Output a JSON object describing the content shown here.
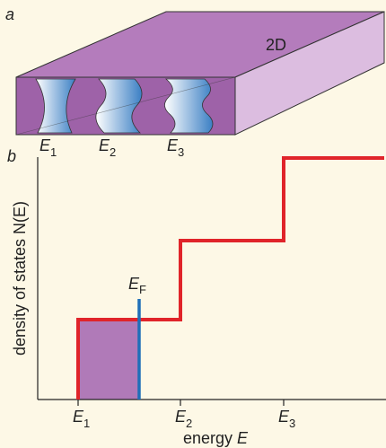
{
  "panel_a": {
    "letter": "a",
    "slab_label": "2D",
    "levels": [
      {
        "symbol": "E",
        "subscript": "1"
      },
      {
        "symbol": "E",
        "subscript": "2"
      },
      {
        "symbol": "E",
        "subscript": "3"
      }
    ]
  },
  "panel_b": {
    "letter": "b",
    "y_axis_label": "density of states N(E)",
    "x_axis_label": {
      "text": "energy ",
      "symbol": "E"
    },
    "fermi_label": {
      "symbol": "E",
      "subscript": "F"
    },
    "x_ticks": [
      {
        "symbol": "E",
        "subscript": "1"
      },
      {
        "symbol": "E",
        "subscript": "2"
      },
      {
        "symbol": "E",
        "subscript": "3"
      }
    ]
  }
}
